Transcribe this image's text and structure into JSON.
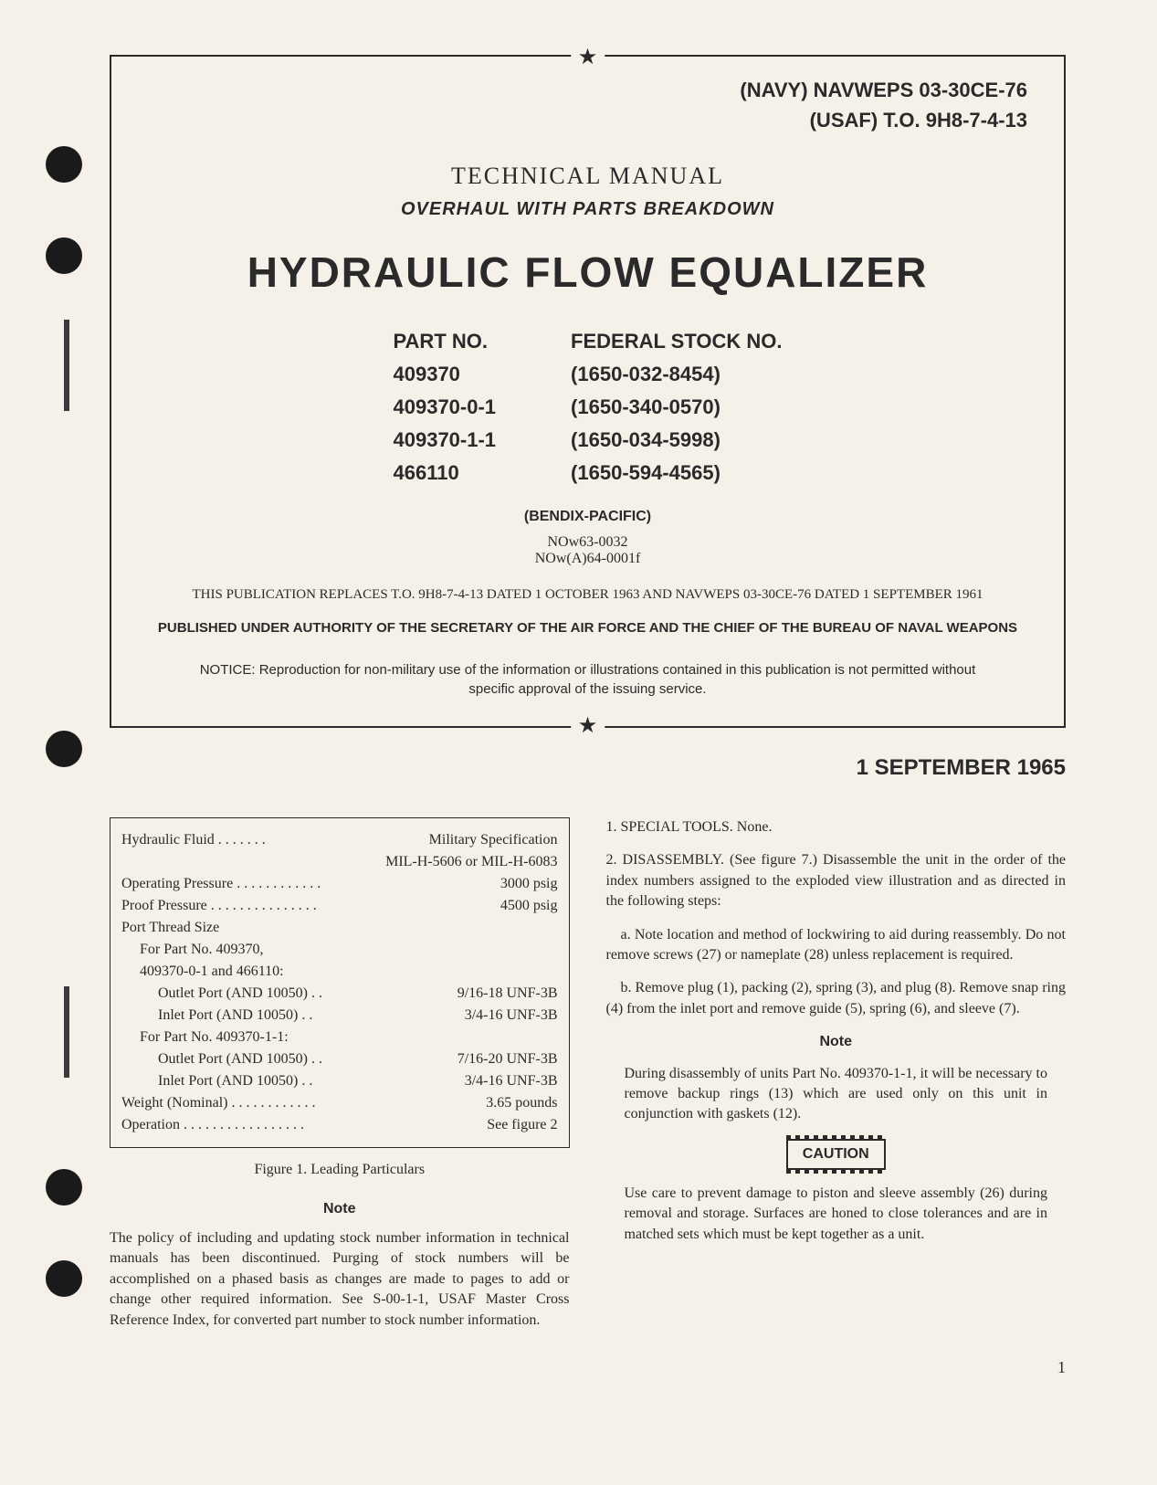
{
  "doc_ids": {
    "navy": "(NAVY) NAVWEPS 03-30CE-76",
    "usaf": "(USAF) T.O. 9H8-7-4-13"
  },
  "heading": {
    "tech_manual": "TECHNICAL MANUAL",
    "subtitle": "OVERHAUL WITH PARTS BREAKDOWN",
    "main_title": "HYDRAULIC FLOW EQUALIZER"
  },
  "part_table": {
    "header_part": "PART NO.",
    "header_stock": "FEDERAL STOCK NO.",
    "rows": [
      {
        "part": "409370",
        "stock": "(1650-032-8454)"
      },
      {
        "part": "409370-0-1",
        "stock": "(1650-340-0570)"
      },
      {
        "part": "409370-1-1",
        "stock": "(1650-034-5998)"
      },
      {
        "part": "466110",
        "stock": "(1650-594-4565)"
      }
    ]
  },
  "bendix": "(BENDIX-PACIFIC)",
  "nowcodes": {
    "line1": "NOw63-0032",
    "line2": "NOw(A)64-0001f"
  },
  "replaces": "THIS PUBLICATION REPLACES T.O. 9H8-7-4-13 DATED 1 OCTOBER 1963 AND NAVWEPS 03-30CE-76 DATED 1 SEPTEMBER 1961",
  "authority": "PUBLISHED UNDER AUTHORITY OF THE SECRETARY OF THE AIR FORCE AND THE CHIEF OF THE BUREAU OF NAVAL WEAPONS",
  "notice": "NOTICE: Reproduction for non-military use of the information or illustrations contained in this publication is not permitted without specific approval of the issuing service.",
  "date": "1 SEPTEMBER 1965",
  "figure1": {
    "caption": "Figure 1.  Leading Particulars",
    "rows": {
      "fluid_label": "Hydraulic Fluid . . . . . . .",
      "fluid_value": "Military Specification",
      "fluid_spec": "MIL-H-5606 or MIL-H-6083",
      "op_press_label": "Operating Pressure  . . . . . . . . . . . .",
      "op_press_value": "3000 psig",
      "proof_press_label": "Proof Pressure . . . . . . . . . . . . . . .",
      "proof_press_value": "4500 psig",
      "port_thread": "Port Thread Size",
      "group1": "For Part No. 409370,",
      "group1b": "409370-0-1 and 466110:",
      "g1_outlet_label": "Outlet Port (AND 10050)  . .",
      "g1_outlet_value": "9/16-18 UNF-3B",
      "g1_inlet_label": "Inlet Port (AND 10050)  . .",
      "g1_inlet_value": "3/4-16 UNF-3B",
      "group2": "For Part No. 409370-1-1:",
      "g2_outlet_label": "Outlet Port (AND 10050) . .",
      "g2_outlet_value": "7/16-20 UNF-3B",
      "g2_inlet_label": "Inlet Port (AND 10050)  . .",
      "g2_inlet_value": "3/4-16 UNF-3B",
      "weight_label": "Weight (Nominal)  . . . . . . . . . . . .",
      "weight_value": "3.65 pounds",
      "operation_label": "Operation . . . . . . . . . . . . . . . . .",
      "operation_value": "See figure 2"
    }
  },
  "note1": {
    "heading": "Note",
    "text": "The policy of including and updating stock number information in technical manuals has been discontinued. Purging of stock numbers will be accomplished on a phased basis as changes are made to pages to add or change other required information. See S-00-1-1, USAF Master Cross Reference Index, for converted part number to stock number information."
  },
  "col2": {
    "tools": "1. SPECIAL TOOLS.  None.",
    "disassembly": "2. DISASSEMBLY. (See figure 7.) Disassemble the unit in the order of the index numbers assigned to the exploded view illustration and as directed in the following steps:",
    "step_a": "a. Note location and method of lockwiring to aid during reassembly. Do not remove screws (27) or nameplate (28) unless replacement is required.",
    "step_b": "b. Remove plug (1), packing (2), spring (3), and plug (8). Remove snap ring (4) from the inlet port and remove guide (5), spring (6), and sleeve (7).",
    "note2_heading": "Note",
    "note2_text": "During disassembly of units Part No. 409370-1-1, it will be necessary to remove backup rings (13) which are used only on this unit in conjunction with gaskets (12).",
    "caution": "CAUTION",
    "caution_text": "Use care to prevent damage to piston and sleeve assembly (26) during removal and storage. Surfaces are honed to close tolerances and are in matched sets which must be kept together as a unit."
  },
  "page_num": "1",
  "styling": {
    "background_color": "#f5f0e8",
    "text_color": "#2a2a2a",
    "main_title_fontsize": 46,
    "body_fontsize": 16,
    "doc_id_fontsize": 22
  }
}
